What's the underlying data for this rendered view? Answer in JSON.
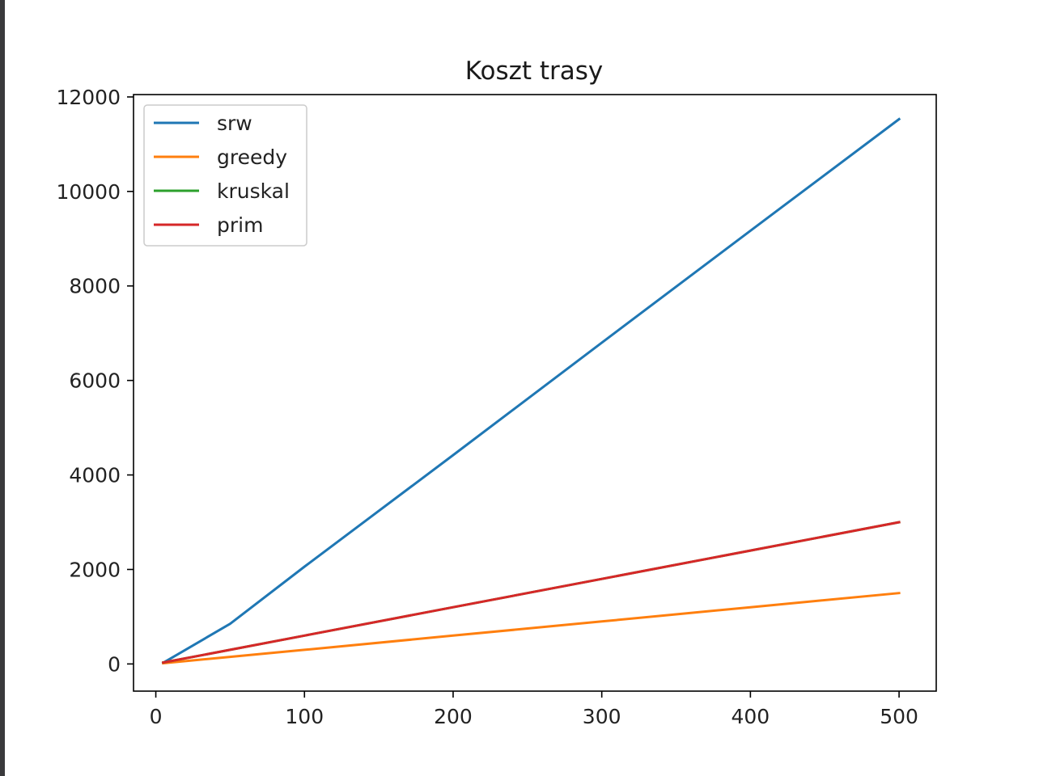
{
  "chart_data": {
    "type": "line",
    "title": "Koszt trasy",
    "xlabel": "",
    "ylabel": "",
    "xlim": [
      -15,
      525
    ],
    "ylim": [
      -575,
      12050
    ],
    "x_ticks": [
      0,
      100,
      200,
      300,
      400,
      500
    ],
    "y_ticks": [
      0,
      2000,
      4000,
      6000,
      8000,
      10000,
      12000
    ],
    "grid": false,
    "legend_position": "top-left",
    "series": [
      {
        "name": "srw",
        "color": "#1f77b4",
        "x": [
          5,
          50,
          100,
          200,
          300,
          400,
          500
        ],
        "y": [
          25,
          850,
          2060,
          4420,
          6800,
          9170,
          11530
        ]
      },
      {
        "name": "greedy",
        "color": "#ff7f0e",
        "x": [
          5,
          50,
          100,
          200,
          300,
          400,
          500
        ],
        "y": [
          15,
          150,
          300,
          600,
          900,
          1200,
          1500
        ]
      },
      {
        "name": "kruskal",
        "color": "#2ca02c",
        "x": [
          5,
          50,
          100,
          200,
          300,
          400,
          500
        ],
        "y": [
          30,
          300,
          600,
          1200,
          1800,
          2400,
          3000
        ]
      },
      {
        "name": "prim",
        "color": "#d62728",
        "x": [
          5,
          50,
          100,
          200,
          300,
          400,
          500
        ],
        "y": [
          30,
          300,
          600,
          1200,
          1800,
          2400,
          3000
        ]
      }
    ]
  }
}
